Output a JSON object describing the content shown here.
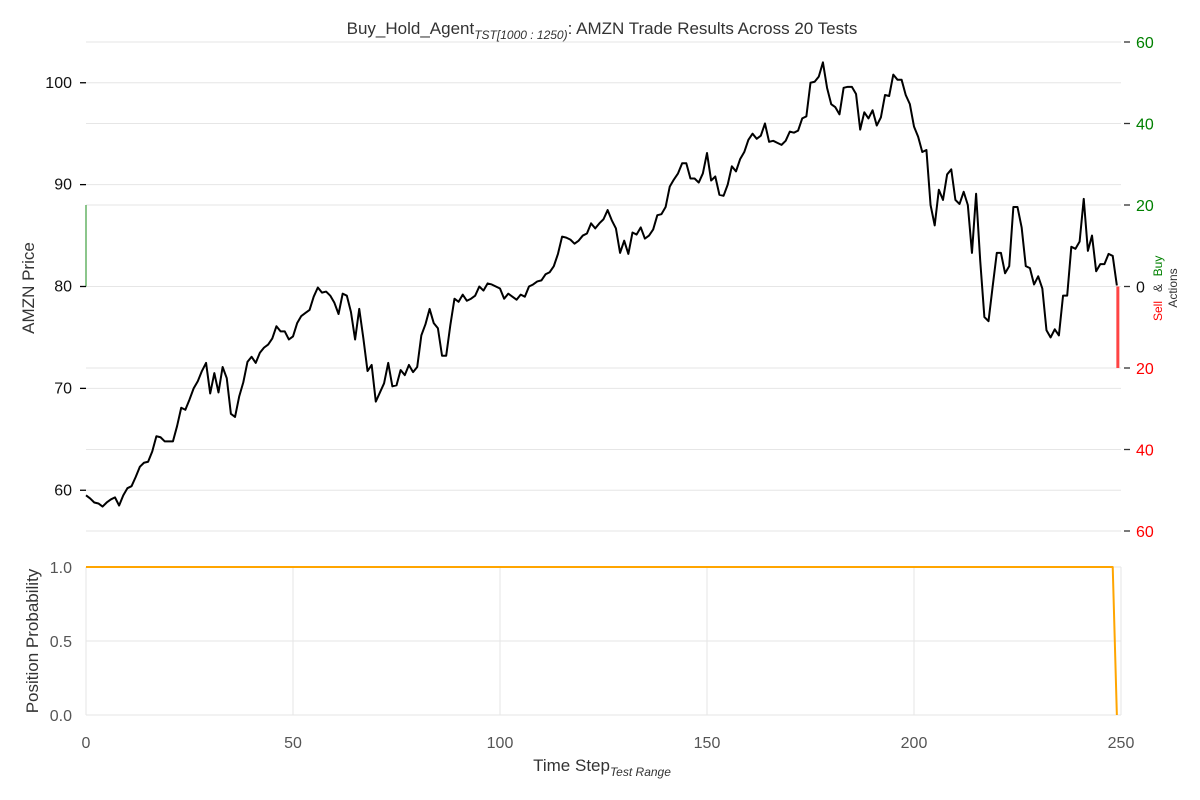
{
  "chart_data": [
    {
      "type": "line",
      "title_main": "Buy_Hold_Agent",
      "title_sub": "TST[1000 : 1250)",
      "title_rest": ": AMZN Trade Results Across 20 Tests",
      "ylabel": "AMZN Price",
      "ylim": [
        56,
        104
      ],
      "xlim": [
        0,
        250
      ],
      "yticks": [
        60,
        70,
        80,
        90,
        100
      ],
      "grid": true,
      "series": [
        {
          "color": "#000000",
          "x": [
            0,
            1,
            2,
            3,
            4,
            5,
            6,
            7,
            8,
            9,
            10,
            11,
            12,
            13,
            14,
            15,
            16,
            17,
            18,
            19,
            20,
            21,
            22,
            23,
            24,
            25,
            26,
            27,
            28,
            29,
            30,
            31,
            32,
            33,
            34,
            35,
            36,
            37,
            38,
            39,
            40,
            41,
            42,
            43,
            44,
            45,
            46,
            47,
            48,
            49,
            50,
            51,
            52,
            53,
            54,
            55,
            56,
            57,
            58,
            59,
            60,
            61,
            62,
            63,
            64,
            65,
            66,
            67,
            68,
            69,
            70,
            71,
            72,
            73,
            74,
            75,
            76,
            77,
            78,
            79,
            80,
            81,
            82,
            83,
            84,
            85,
            86,
            87,
            88,
            89,
            90,
            91,
            92,
            93,
            94,
            95,
            96,
            97,
            98,
            99,
            100,
            101,
            102,
            103,
            104,
            105,
            106,
            107,
            108,
            109,
            110,
            111,
            112,
            113,
            114,
            115,
            116,
            117,
            118,
            119,
            120,
            121,
            122,
            123,
            124,
            125,
            126,
            127,
            128,
            129,
            130,
            131,
            132,
            133,
            134,
            135,
            136,
            137,
            138,
            139,
            140,
            141,
            142,
            143,
            144,
            145,
            146,
            147,
            148,
            149,
            150,
            151,
            152,
            153,
            154,
            155,
            156,
            157,
            158,
            159,
            160,
            161,
            162,
            163,
            164,
            165,
            166,
            167,
            168,
            169,
            170,
            171,
            172,
            173,
            174,
            175,
            176,
            177,
            178,
            179,
            180,
            181,
            182,
            183,
            184,
            185,
            186,
            187,
            188,
            189,
            190,
            191,
            192,
            193,
            194,
            195,
            196,
            197,
            198,
            199,
            200,
            201,
            202,
            203,
            204,
            205,
            206,
            207,
            208,
            209,
            210,
            211,
            212,
            213,
            214,
            215,
            216,
            217,
            218,
            219,
            220,
            221,
            222,
            223,
            224,
            225,
            226,
            227,
            228,
            229,
            230,
            231,
            232,
            233,
            234,
            235,
            236,
            237,
            238,
            239,
            240,
            241,
            242,
            243,
            244,
            245,
            246,
            247,
            248,
            249
          ],
          "y": [
            59.5,
            59.2,
            58.8,
            58.7,
            58.4,
            58.8,
            59.1,
            59.3,
            58.5,
            59.5,
            60.2,
            60.4,
            61.3,
            62.3,
            62.7,
            62.8,
            63.8,
            65.3,
            65.2,
            64.8,
            64.8,
            64.8,
            66.3,
            68.1,
            67.9,
            68.9,
            70.0,
            70.7,
            71.7,
            72.5,
            69.5,
            71.5,
            69.6,
            72.1,
            71.0,
            67.5,
            67.2,
            69.2,
            70.6,
            72.6,
            73.1,
            72.5,
            73.5,
            74.0,
            74.3,
            74.9,
            76.1,
            75.6,
            75.6,
            74.8,
            75.1,
            76.4,
            77.1,
            77.4,
            77.7,
            79.0,
            79.9,
            79.4,
            79.5,
            79.1,
            78.4,
            77.3,
            79.3,
            79.1,
            77.5,
            74.8,
            77.8,
            74.9,
            71.7,
            72.3,
            68.7,
            69.6,
            70.5,
            72.5,
            70.2,
            70.3,
            71.8,
            71.3,
            72.3,
            71.6,
            72.1,
            75.2,
            76.3,
            77.8,
            76.4,
            75.9,
            73.2,
            73.2,
            76.2,
            78.8,
            78.5,
            79.2,
            78.6,
            78.8,
            79.1,
            80.0,
            79.6,
            80.3,
            80.2,
            80.0,
            79.8,
            78.8,
            79.3,
            79.0,
            78.7,
            79.2,
            79.0,
            80.0,
            80.2,
            80.5,
            80.6,
            81.2,
            81.4,
            82.0,
            83.2,
            84.9,
            84.8,
            84.6,
            84.2,
            84.5,
            85.0,
            85.2,
            86.2,
            85.7,
            86.2,
            86.6,
            87.5,
            86.5,
            85.7,
            83.3,
            84.5,
            83.2,
            85.3,
            85.1,
            85.8,
            84.7,
            85.0,
            85.6,
            87.0,
            87.1,
            87.8,
            89.8,
            90.5,
            91.1,
            92.1,
            92.1,
            90.6,
            90.6,
            90.2,
            91.1,
            93.1,
            90.4,
            90.8,
            89.0,
            88.9,
            90.0,
            91.8,
            91.3,
            92.5,
            93.2,
            94.4,
            95.0,
            94.5,
            94.8,
            96.0,
            94.2,
            94.3,
            94.1,
            93.9,
            94.3,
            95.2,
            95.1,
            95.3,
            96.5,
            96.7,
            100.0,
            100.1,
            100.6,
            102.0,
            99.5,
            97.9,
            97.6,
            96.9,
            99.5,
            99.6,
            99.6,
            98.9,
            95.4,
            97.1,
            96.5,
            97.3,
            95.8,
            96.6,
            98.8,
            98.7,
            100.8,
            100.3,
            100.3,
            98.8,
            97.9,
            95.7,
            94.7,
            93.2,
            93.4,
            88.0,
            86.0,
            89.5,
            88.5,
            91.0,
            91.5,
            88.5,
            88.1,
            89.3,
            88.0,
            83.3,
            89.1,
            82.5,
            77.0,
            76.6,
            80.0,
            83.3,
            83.3,
            81.3,
            82.0,
            87.8,
            87.8,
            85.8,
            82.0,
            81.8,
            80.2,
            81.0,
            79.8,
            75.7,
            75.0,
            75.8,
            75.2,
            79.1,
            79.1,
            83.9,
            83.7,
            84.4,
            88.6,
            83.5,
            85.0,
            81.5,
            82.2,
            82.2,
            83.2,
            83.0,
            80.1
          ]
        }
      ],
      "secondary_axis": {
        "ylabel_parts": [
          "Sell",
          "&",
          "Buy",
          "Actions"
        ],
        "ylim": [
          -60,
          60
        ],
        "buy_ticks": [
          20,
          40,
          60
        ],
        "buy_tick_labels": [
          "20",
          "40",
          "60"
        ],
        "sell_ticks": [
          -20,
          -40,
          -60
        ],
        "sell_tick_labels": [
          "20",
          "40",
          "60"
        ],
        "zero_label": "0",
        "buy_color": "#008000",
        "sell_color": "#ff0000",
        "actions": [
          {
            "x": 0,
            "value": 20,
            "kind": "buy"
          },
          {
            "x": 249,
            "value": -20,
            "kind": "sell"
          }
        ]
      }
    },
    {
      "type": "line",
      "ylabel": "Position Probability",
      "xlabel_main": "Time Step",
      "xlabel_sub": "Test Range",
      "xlim": [
        0,
        250
      ],
      "ylim": [
        0.0,
        1.0
      ],
      "yticks": [
        0.0,
        0.5,
        1.0
      ],
      "ytick_labels": [
        "0.0",
        "0.5",
        "1.0"
      ],
      "xticks": [
        0,
        50,
        100,
        150,
        200,
        250
      ],
      "xtick_labels": [
        "0",
        "50",
        "100",
        "150",
        "200",
        "250"
      ],
      "grid": true,
      "series": [
        {
          "color": "#ffa500",
          "x": [
            0,
            248,
            249
          ],
          "y": [
            1.0,
            1.0,
            0.0
          ]
        }
      ]
    }
  ]
}
